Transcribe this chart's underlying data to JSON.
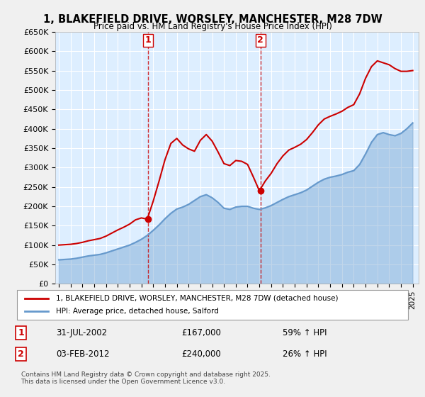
{
  "title": "1, BLAKEFIELD DRIVE, WORSLEY, MANCHESTER, M28 7DW",
  "subtitle": "Price paid vs. HM Land Registry's House Price Index (HPI)",
  "legend_line1": "1, BLAKEFIELD DRIVE, WORSLEY, MANCHESTER, M28 7DW (detached house)",
  "legend_line2": "HPI: Average price, detached house, Salford",
  "annotation1_label": "1",
  "annotation1_date": "31-JUL-2002",
  "annotation1_price": "£167,000",
  "annotation1_hpi": "59% ↑ HPI",
  "annotation2_label": "2",
  "annotation2_date": "03-FEB-2012",
  "annotation2_price": "£240,000",
  "annotation2_hpi": "26% ↑ HPI",
  "copyright": "Contains HM Land Registry data © Crown copyright and database right 2025.\nThis data is licensed under the Open Government Licence v3.0.",
  "red_color": "#cc0000",
  "blue_color": "#6699cc",
  "background_color": "#ddeeff",
  "plot_bg": "#ffffff",
  "vline_color": "#cc0000",
  "sale1_year": 2002.58,
  "sale1_price": 167000,
  "sale2_year": 2012.09,
  "sale2_price": 240000,
  "ylim": [
    0,
    650000
  ],
  "xlim_start": 1995,
  "xlim_end": 2025.5
}
